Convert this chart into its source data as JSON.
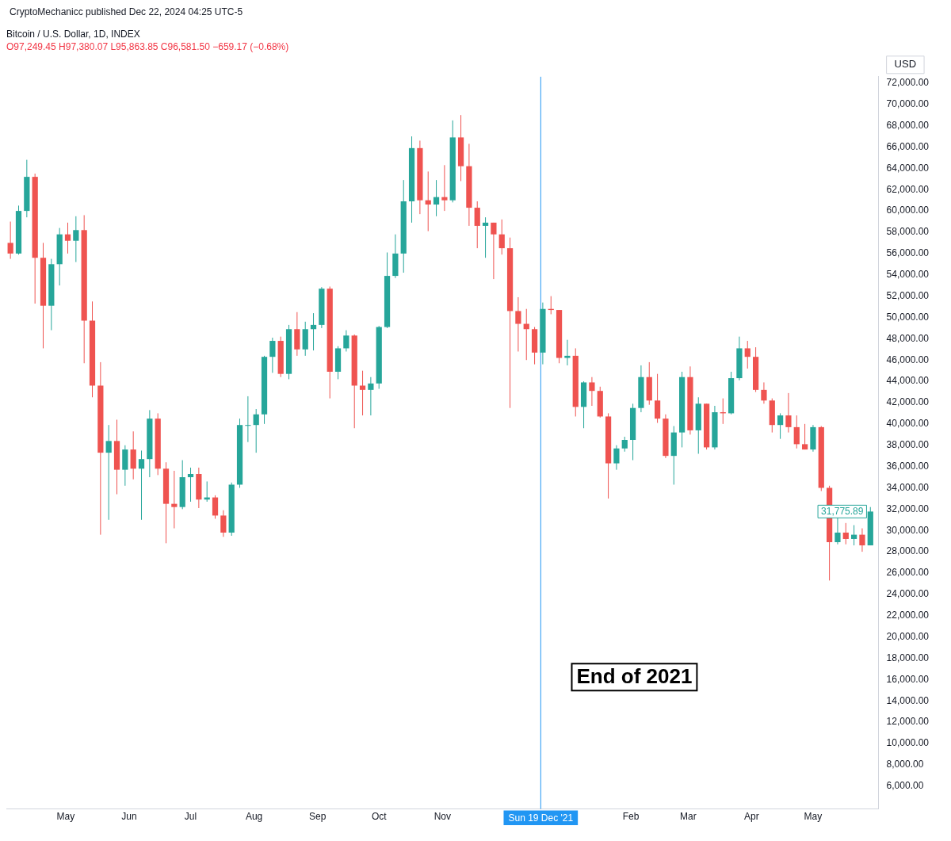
{
  "chart_data": {
    "type": "candlestick",
    "title": "Bitcoin / U.S. Dollar, 1D, INDEX",
    "subtitle": "O97,249.45 H97,380.07 L95,863.85 C96,581.50 −659.17 (−0.68%)",
    "ylabel": "USD",
    "annotations": [
      "CryptoMechanicc published Dec 22, 2024 04:25 UTC-5",
      "End of 2021",
      {
        "text": "31,775.89",
        "x": "2022-05-31",
        "y": 31775.89
      }
    ],
    "ref_lines": [
      {
        "axis": "x",
        "value": "2021-12-19",
        "label": "Sun 19 Dec '21",
        "color": "#2196f3"
      }
    ],
    "x": [
      "2021-04-04",
      "2021-04-08",
      "2021-04-12",
      "2021-04-16",
      "2021-04-20",
      "2021-04-24",
      "2021-04-28",
      "2021-05-02",
      "2021-05-06",
      "2021-05-10",
      "2021-05-14",
      "2021-05-18",
      "2021-05-22",
      "2021-05-26",
      "2021-05-30",
      "2021-06-03",
      "2021-06-07",
      "2021-06-11",
      "2021-06-15",
      "2021-06-19",
      "2021-06-23",
      "2021-06-27",
      "2021-07-01",
      "2021-07-05",
      "2021-07-09",
      "2021-07-13",
      "2021-07-17",
      "2021-07-21",
      "2021-07-25",
      "2021-07-29",
      "2021-08-02",
      "2021-08-06",
      "2021-08-10",
      "2021-08-14",
      "2021-08-18",
      "2021-08-22",
      "2021-08-26",
      "2021-08-30",
      "2021-09-03",
      "2021-09-07",
      "2021-09-11",
      "2021-09-15",
      "2021-09-19",
      "2021-09-23",
      "2021-09-27",
      "2021-10-01",
      "2021-10-05",
      "2021-10-09",
      "2021-10-13",
      "2021-10-17",
      "2021-10-21",
      "2021-10-25",
      "2021-10-29",
      "2021-11-02",
      "2021-11-06",
      "2021-11-10",
      "2021-11-14",
      "2021-11-18",
      "2021-11-22",
      "2021-11-26",
      "2021-11-30",
      "2021-12-04",
      "2021-12-08",
      "2021-12-12",
      "2021-12-16",
      "2021-12-20",
      "2021-12-24",
      "2021-12-28",
      "2022-01-01",
      "2022-01-05",
      "2022-01-09",
      "2022-01-13",
      "2022-01-17",
      "2022-01-21",
      "2022-01-25",
      "2022-01-29",
      "2022-02-02",
      "2022-02-06",
      "2022-02-10",
      "2022-02-14",
      "2022-02-18",
      "2022-02-22",
      "2022-02-26",
      "2022-03-02",
      "2022-03-06",
      "2022-03-10",
      "2022-03-14",
      "2022-03-18",
      "2022-03-22",
      "2022-03-26",
      "2022-03-30",
      "2022-04-03",
      "2022-04-07",
      "2022-04-11",
      "2022-04-15",
      "2022-04-19",
      "2022-04-23",
      "2022-04-27",
      "2022-05-01",
      "2022-05-05",
      "2022-05-09",
      "2022-05-13",
      "2022-05-17",
      "2022-05-21",
      "2022-05-25",
      "2022-05-29"
    ],
    "ohlc": [
      [
        57000,
        59000,
        55500,
        56000
      ],
      [
        56000,
        60500,
        55900,
        60000
      ],
      [
        60000,
        64800,
        59400,
        63200
      ],
      [
        63200,
        63500,
        51300,
        55600
      ],
      [
        55600,
        57000,
        47100,
        51100
      ],
      [
        51100,
        55500,
        48800,
        55000
      ],
      [
        55000,
        58400,
        53000,
        57800
      ],
      [
        57800,
        58900,
        56000,
        57200
      ],
      [
        57200,
        59500,
        55200,
        58200
      ],
      [
        58200,
        59600,
        45700,
        49700
      ],
      [
        49700,
        51500,
        42500,
        43600
      ],
      [
        43600,
        45800,
        29600,
        37300
      ],
      [
        37300,
        39900,
        31000,
        38400
      ],
      [
        38400,
        40400,
        33400,
        35700
      ],
      [
        35700,
        38000,
        34200,
        37600
      ],
      [
        37600,
        39300,
        34800,
        35800
      ],
      [
        35800,
        37500,
        31000,
        36700
      ],
      [
        36700,
        41300,
        35000,
        40500
      ],
      [
        40500,
        41000,
        35200,
        35800
      ],
      [
        35800,
        36400,
        28800,
        32500
      ],
      [
        32500,
        35600,
        30200,
        32200
      ],
      [
        32200,
        36600,
        32000,
        35000
      ],
      [
        35000,
        35900,
        32700,
        35300
      ],
      [
        35300,
        35900,
        32100,
        32900
      ],
      [
        32900,
        34600,
        32700,
        33100
      ],
      [
        33100,
        33300,
        31100,
        31400
      ],
      [
        31400,
        31900,
        29400,
        29800
      ],
      [
        29800,
        34500,
        29500,
        34300
      ],
      [
        34300,
        40500,
        34000,
        39900
      ],
      [
        39900,
        42600,
        38300,
        39900
      ],
      [
        39900,
        41400,
        37300,
        40900
      ],
      [
        40900,
        46400,
        40000,
        46300
      ],
      [
        46300,
        48100,
        44800,
        47800
      ],
      [
        47800,
        48200,
        44400,
        44700
      ],
      [
        44700,
        49300,
        44200,
        48900
      ],
      [
        48900,
        50500,
        46400,
        47000
      ],
      [
        47000,
        49600,
        46400,
        48900
      ],
      [
        48900,
        50400,
        46900,
        49300
      ],
      [
        49300,
        52850,
        49000,
        52700
      ],
      [
        52700,
        52900,
        42400,
        44900
      ],
      [
        44900,
        47300,
        44200,
        47100
      ],
      [
        47100,
        48800,
        46800,
        48300
      ],
      [
        48300,
        48400,
        39600,
        43600
      ],
      [
        43600,
        45000,
        40800,
        43200
      ],
      [
        43200,
        44400,
        40800,
        43800
      ],
      [
        43800,
        49200,
        43300,
        49100
      ],
      [
        49100,
        56100,
        49000,
        53900
      ],
      [
        53900,
        57800,
        53700,
        56000
      ],
      [
        56000,
        62900,
        54200,
        60900
      ],
      [
        60900,
        67000,
        58900,
        65900
      ],
      [
        65900,
        66600,
        59700,
        61000
      ],
      [
        61000,
        63700,
        58100,
        60600
      ],
      [
        60600,
        62900,
        59500,
        61300
      ],
      [
        61300,
        64300,
        60000,
        61000
      ],
      [
        61000,
        68500,
        60800,
        66900
      ],
      [
        66900,
        69000,
        62800,
        64200
      ],
      [
        64200,
        66300,
        58600,
        60300
      ],
      [
        60300,
        60900,
        56500,
        58600
      ],
      [
        58600,
        59400,
        55600,
        58900
      ],
      [
        58900,
        58900,
        53600,
        57800
      ],
      [
        57800,
        59200,
        55900,
        56500
      ],
      [
        56500,
        57500,
        41500,
        50600
      ],
      [
        50600,
        51900,
        46800,
        49400
      ],
      [
        49400,
        50800,
        46000,
        48900
      ],
      [
        48900,
        49100,
        45600,
        46700
      ],
      [
        46700,
        51400,
        45600,
        50800
      ],
      [
        50800,
        52000,
        50300,
        50700
      ],
      [
        50700,
        50700,
        45700,
        46200
      ],
      [
        46200,
        47900,
        45500,
        46400
      ],
      [
        46400,
        47100,
        40700,
        41600
      ],
      [
        41600,
        44000,
        39600,
        43900
      ],
      [
        43900,
        44400,
        41700,
        43100
      ],
      [
        43100,
        43500,
        40600,
        40700
      ],
      [
        40700,
        41000,
        33000,
        36300
      ],
      [
        36300,
        38000,
        35700,
        37700
      ],
      [
        37700,
        38800,
        37400,
        38500
      ],
      [
        38500,
        41900,
        36600,
        41500
      ],
      [
        41500,
        45500,
        41100,
        44400
      ],
      [
        44400,
        45800,
        41800,
        42200
      ],
      [
        42200,
        44700,
        40100,
        40500
      ],
      [
        40500,
        40900,
        36800,
        37000
      ],
      [
        37000,
        39800,
        34300,
        39200
      ],
      [
        39200,
        44900,
        37800,
        44400
      ],
      [
        44400,
        45400,
        39000,
        39400
      ],
      [
        39400,
        42500,
        37200,
        41900
      ],
      [
        41900,
        41900,
        37600,
        37800
      ],
      [
        37800,
        41700,
        37600,
        41100
      ],
      [
        41100,
        42400,
        40000,
        41000
      ],
      [
        41000,
        44900,
        40900,
        44300
      ],
      [
        44300,
        48200,
        44100,
        47100
      ],
      [
        47100,
        47800,
        45200,
        46300
      ],
      [
        46300,
        47200,
        43000,
        43200
      ],
      [
        43200,
        43900,
        41900,
        42200
      ],
      [
        42200,
        42400,
        39200,
        39900
      ],
      [
        39900,
        41000,
        38600,
        40800
      ],
      [
        40800,
        42900,
        39200,
        39700
      ],
      [
        39700,
        40800,
        37700,
        38100
      ],
      [
        38100,
        40000,
        37600,
        37600
      ],
      [
        37600,
        39900,
        37400,
        39700
      ],
      [
        39700,
        39800,
        33700,
        34000
      ],
      [
        34000,
        34200,
        25300,
        28900
      ],
      [
        28900,
        31300,
        28700,
        29800
      ],
      [
        29800,
        30700,
        28700,
        29200
      ],
      [
        29200,
        30500,
        28600,
        29600
      ],
      [
        29600,
        30200,
        28000,
        28600
      ],
      [
        28600,
        32200,
        28600,
        31775.89
      ]
    ],
    "colors": [
      "#ef5350",
      "#26a69a",
      "#26a69a",
      "#ef5350",
      "#ef5350",
      "#26a69a",
      "#26a69a",
      "#ef5350",
      "#26a69a",
      "#ef5350",
      "#ef5350",
      "#ef5350",
      "#26a69a",
      "#ef5350",
      "#26a69a",
      "#ef5350",
      "#26a69a",
      "#26a69a",
      "#ef5350",
      "#ef5350",
      "#ef5350",
      "#26a69a",
      "#26a69a",
      "#ef5350",
      "#26a69a",
      "#ef5350",
      "#ef5350",
      "#26a69a",
      "#26a69a",
      "#26a69a",
      "#26a69a",
      "#26a69a",
      "#26a69a",
      "#ef5350",
      "#26a69a",
      "#ef5350",
      "#26a69a",
      "#26a69a",
      "#26a69a",
      "#ef5350",
      "#26a69a",
      "#26a69a",
      "#ef5350",
      "#ef5350",
      "#26a69a",
      "#26a69a",
      "#26a69a",
      "#26a69a",
      "#26a69a",
      "#26a69a",
      "#ef5350",
      "#ef5350",
      "#26a69a",
      "#ef5350",
      "#26a69a",
      "#ef5350",
      "#ef5350",
      "#ef5350",
      "#26a69a",
      "#ef5350",
      "#ef5350",
      "#ef5350",
      "#ef5350",
      "#ef5350",
      "#ef5350",
      "#26a69a",
      "#ef5350",
      "#ef5350",
      "#26a69a",
      "#ef5350",
      "#26a69a",
      "#ef5350",
      "#ef5350",
      "#ef5350",
      "#26a69a",
      "#26a69a",
      "#26a69a",
      "#26a69a",
      "#ef5350",
      "#ef5350",
      "#ef5350",
      "#26a69a",
      "#26a69a",
      "#ef5350",
      "#26a69a",
      "#ef5350",
      "#26a69a",
      "#ef5350",
      "#26a69a",
      "#26a69a",
      "#ef5350",
      "#ef5350",
      "#ef5350",
      "#ef5350",
      "#26a69a",
      "#ef5350",
      "#ef5350",
      "#ef5350",
      "#26a69a",
      "#ef5350",
      "#ef5350",
      "#26a69a",
      "#ef5350",
      "#26a69a",
      "#ef5350",
      "#26a69a"
    ],
    "xlim": [
      "2021-04-02",
      "2022-06-02"
    ],
    "xticks": [
      {
        "value": "2021-05-01",
        "label": "May"
      },
      {
        "value": "2021-06-01",
        "label": "Jun"
      },
      {
        "value": "2021-07-01",
        "label": "Jul"
      },
      {
        "value": "2021-08-01",
        "label": "Aug"
      },
      {
        "value": "2021-09-01",
        "label": "Sep"
      },
      {
        "value": "2021-10-01",
        "label": "Oct"
      },
      {
        "value": "2021-11-01",
        "label": "Nov"
      },
      {
        "value": "2022-02-01",
        "label": "Feb"
      },
      {
        "value": "2022-03-01",
        "label": "Mar"
      },
      {
        "value": "2022-04-01",
        "label": "Apr"
      },
      {
        "value": "2022-05-01",
        "label": "May"
      }
    ],
    "ylim": [
      3850,
      72600
    ],
    "yticks": [
      {
        "value": 6000,
        "label": "6,000.00"
      },
      {
        "value": 8000,
        "label": "8,000.00"
      },
      {
        "value": 10000,
        "label": "10,000.00"
      },
      {
        "value": 12000,
        "label": "12,000.00"
      },
      {
        "value": 14000,
        "label": "14,000.00"
      },
      {
        "value": 16000,
        "label": "16,000.00"
      },
      {
        "value": 18000,
        "label": "18,000.00"
      },
      {
        "value": 20000,
        "label": "20,000.00"
      },
      {
        "value": 22000,
        "label": "22,000.00"
      },
      {
        "value": 24000,
        "label": "24,000.00"
      },
      {
        "value": 26000,
        "label": "26,000.00"
      },
      {
        "value": 28000,
        "label": "28,000.00"
      },
      {
        "value": 30000,
        "label": "30,000.00"
      },
      {
        "value": 32000,
        "label": "32,000.00"
      },
      {
        "value": 34000,
        "label": "34,000.00"
      },
      {
        "value": 36000,
        "label": "36,000.00"
      },
      {
        "value": 38000,
        "label": "38,000.00"
      },
      {
        "value": 40000,
        "label": "40,000.00"
      },
      {
        "value": 42000,
        "label": "42,000.00"
      },
      {
        "value": 44000,
        "label": "44,000.00"
      },
      {
        "value": 46000,
        "label": "46,000.00"
      },
      {
        "value": 48000,
        "label": "48,000.00"
      },
      {
        "value": 50000,
        "label": "50,000.00"
      },
      {
        "value": 52000,
        "label": "52,000.00"
      },
      {
        "value": 54000,
        "label": "54,000.00"
      },
      {
        "value": 56000,
        "label": "56,000.00"
      },
      {
        "value": 58000,
        "label": "58,000.00"
      },
      {
        "value": 60000,
        "label": "60,000.00"
      },
      {
        "value": 62000,
        "label": "62,000.00"
      },
      {
        "value": 64000,
        "label": "64,000.00"
      },
      {
        "value": 66000,
        "label": "66,000.00"
      },
      {
        "value": 68000,
        "label": "68,000.00"
      },
      {
        "value": 70000,
        "label": "70,000.00"
      },
      {
        "value": 72000,
        "label": "72,000.00"
      }
    ]
  }
}
